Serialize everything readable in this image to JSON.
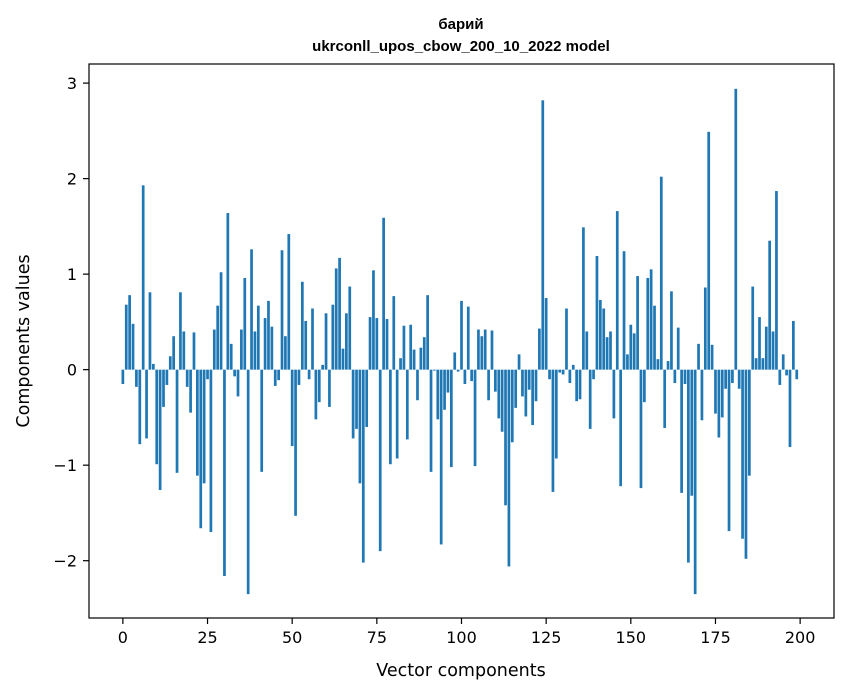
{
  "chart_data": {
    "type": "bar",
    "title": "барий",
    "subtitle": "ukrconll_upos_cbow_200_10_2022 model",
    "xlabel": "Vector components",
    "ylabel": "Components values",
    "xlim": [
      -10,
      210
    ],
    "ylim": [
      -2.6,
      3.2
    ],
    "xticks": [
      0,
      25,
      50,
      75,
      100,
      125,
      150,
      175,
      200
    ],
    "xtick_labels": [
      "0",
      "25",
      "50",
      "75",
      "100",
      "125",
      "150",
      "175",
      "200"
    ],
    "yticks": [
      -2,
      -1,
      0,
      1,
      2,
      3
    ],
    "ytick_labels": [
      "−2",
      "−1",
      "0",
      "1",
      "2",
      "3"
    ],
    "grid": false,
    "bar_color": "#1f77b4",
    "x": [
      0,
      1,
      2,
      3,
      4,
      5,
      6,
      7,
      8,
      9,
      10,
      11,
      12,
      13,
      14,
      15,
      16,
      17,
      18,
      19,
      20,
      21,
      22,
      23,
      24,
      25,
      26,
      27,
      28,
      29,
      30,
      31,
      32,
      33,
      34,
      35,
      36,
      37,
      38,
      39,
      40,
      41,
      42,
      43,
      44,
      45,
      46,
      47,
      48,
      49,
      50,
      51,
      52,
      53,
      54,
      55,
      56,
      57,
      58,
      59,
      60,
      61,
      62,
      63,
      64,
      65,
      66,
      67,
      68,
      69,
      70,
      71,
      72,
      73,
      74,
      75,
      76,
      77,
      78,
      79,
      80,
      81,
      82,
      83,
      84,
      85,
      86,
      87,
      88,
      89,
      90,
      91,
      92,
      93,
      94,
      95,
      96,
      97,
      98,
      99,
      100,
      101,
      102,
      103,
      104,
      105,
      106,
      107,
      108,
      109,
      110,
      111,
      112,
      113,
      114,
      115,
      116,
      117,
      118,
      119,
      120,
      121,
      122,
      123,
      124,
      125,
      126,
      127,
      128,
      129,
      130,
      131,
      132,
      133,
      134,
      135,
      136,
      137,
      138,
      139,
      140,
      141,
      142,
      143,
      144,
      145,
      146,
      147,
      148,
      149,
      150,
      151,
      152,
      153,
      154,
      155,
      156,
      157,
      158,
      159,
      160,
      161,
      162,
      163,
      164,
      165,
      166,
      167,
      168,
      169,
      170,
      171,
      172,
      173,
      174,
      175,
      176,
      177,
      178,
      179,
      180,
      181,
      182,
      183,
      184,
      185,
      186,
      187,
      188,
      189,
      190,
      191,
      192,
      193,
      194,
      195,
      196,
      197,
      198,
      199
    ],
    "values": [
      -0.15,
      0.68,
      0.78,
      0.48,
      -0.18,
      -0.78,
      1.93,
      -0.72,
      0.81,
      0.06,
      -0.99,
      -1.26,
      -0.39,
      -0.16,
      0.14,
      0.35,
      -1.08,
      0.81,
      0.4,
      -0.18,
      -0.45,
      0.39,
      -1.11,
      -1.66,
      -1.19,
      -0.1,
      -1.7,
      0.42,
      0.67,
      1.02,
      -2.16,
      1.64,
      0.27,
      -0.07,
      -0.28,
      0.42,
      0.96,
      -2.35,
      1.26,
      0.4,
      0.67,
      -1.07,
      0.54,
      0.72,
      0.45,
      -0.17,
      -0.11,
      1.25,
      0.35,
      1.42,
      -0.8,
      -1.53,
      -0.16,
      0.92,
      0.51,
      -0.1,
      0.64,
      -0.52,
      -0.34,
      0.05,
      0.59,
      -0.39,
      0.68,
      1.06,
      1.17,
      0.22,
      0.59,
      0.87,
      -0.72,
      -0.62,
      -1.19,
      -2.02,
      -0.6,
      0.55,
      1.04,
      0.54,
      -1.9,
      1.59,
      0.53,
      -0.99,
      0.77,
      -0.93,
      0.12,
      0.46,
      -0.73,
      0.47,
      0.21,
      -0.32,
      0.23,
      0.34,
      0.78,
      -1.07,
      -0.01,
      -0.52,
      -1.83,
      -0.42,
      -0.24,
      -1.02,
      0.18,
      -0.02,
      0.72,
      -0.15,
      0.66,
      -0.12,
      -1.01,
      0.42,
      0.35,
      0.42,
      -0.32,
      0.41,
      -0.23,
      -0.51,
      -0.65,
      -1.42,
      -2.06,
      -0.76,
      -0.4,
      0.16,
      -0.28,
      -0.49,
      -0.21,
      -0.58,
      -0.33,
      0.43,
      2.82,
      0.75,
      -0.1,
      -1.28,
      -0.93,
      -0.03,
      -0.05,
      0.64,
      -0.14,
      0.05,
      -0.33,
      -0.31,
      1.49,
      0.4,
      -0.62,
      -0.1,
      1.19,
      0.73,
      0.64,
      0.34,
      0.4,
      -0.51,
      1.66,
      -1.22,
      1.24,
      0.16,
      0.47,
      0.38,
      0.98,
      -1.24,
      -0.34,
      0.96,
      1.05,
      0.67,
      0.11,
      2.02,
      -0.61,
      0.09,
      0.82,
      -0.14,
      0.44,
      -1.29,
      -0.15,
      -2.02,
      -1.32,
      -2.35,
      0.27,
      -0.53,
      0.86,
      2.49,
      0.26,
      -0.46,
      -0.71,
      -0.5,
      -0.2,
      -1.69,
      -0.14,
      2.94,
      -0.2,
      -1.77,
      -1.98,
      -1.11,
      0.87,
      0.12,
      0.55,
      0.12,
      0.45,
      1.35,
      0.4,
      1.87,
      -0.16,
      0.16,
      -0.06,
      -0.81,
      0.51,
      -0.1
    ]
  }
}
